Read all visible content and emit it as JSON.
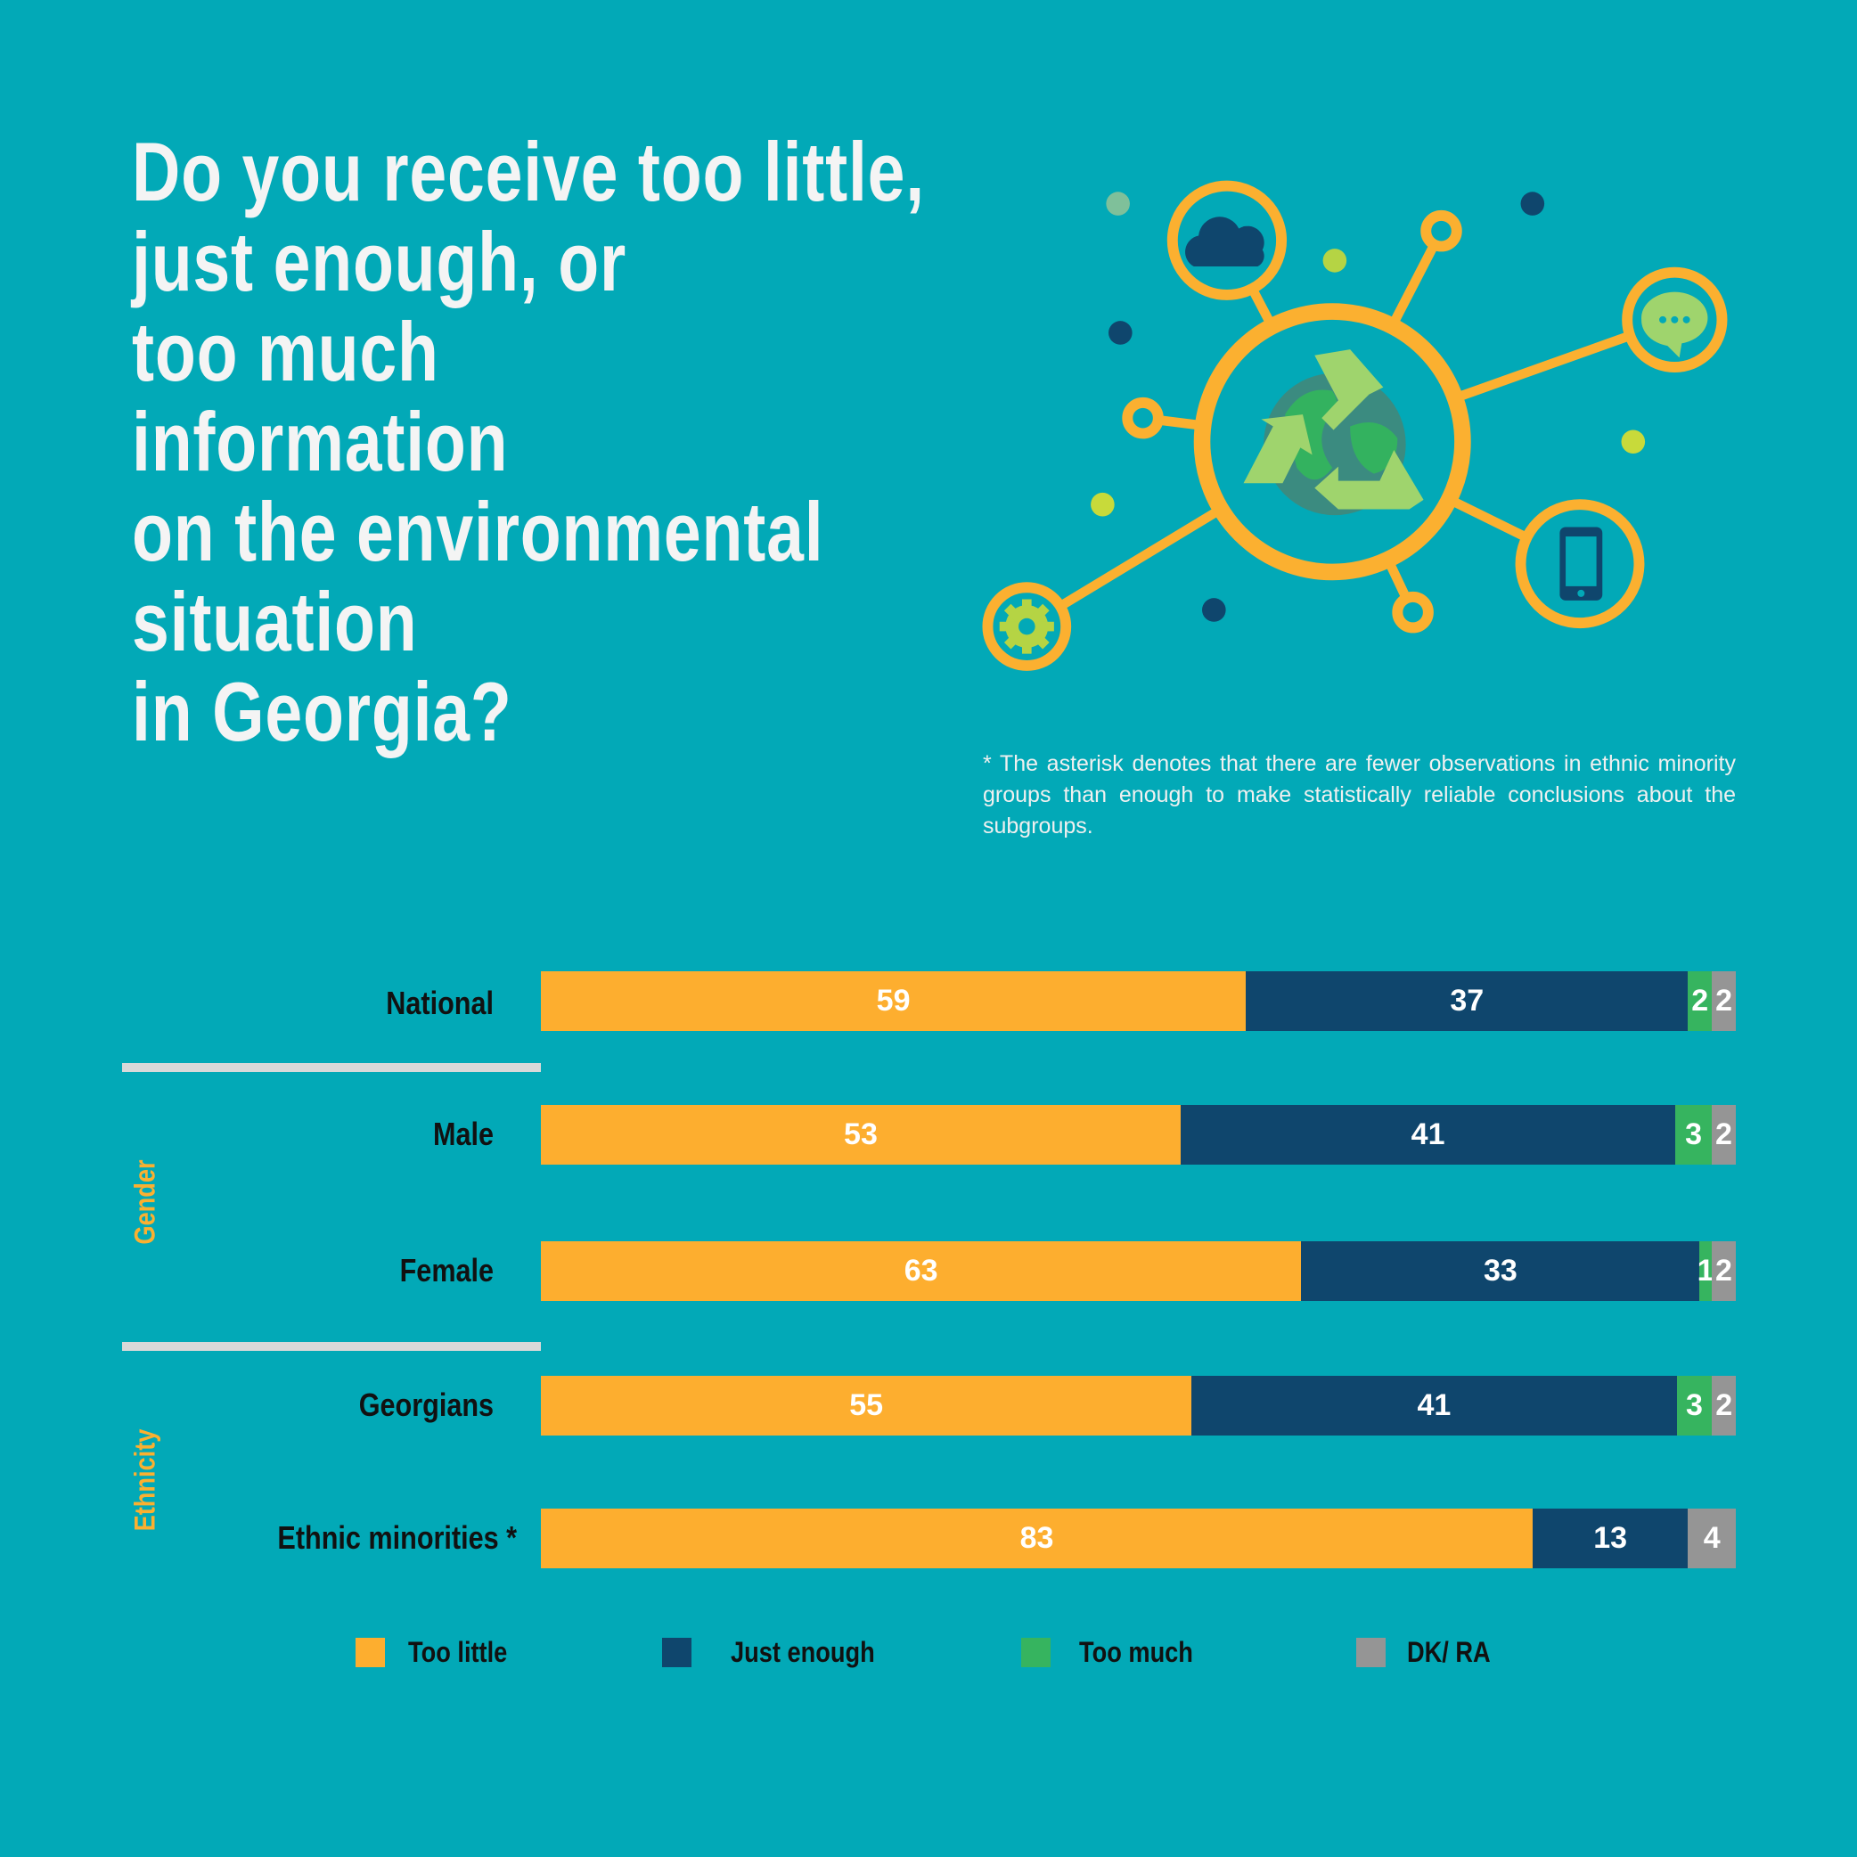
{
  "title_lines": [
    "Do you receive too little,",
    "just enough, or",
    "too much",
    "information",
    "on the environmental",
    "situation",
    "in Georgia?"
  ],
  "note": "* The asterisk denotes that there are fewer observations in ethnic minority groups than enough to make statistically reliable conclusions about the subgroups.",
  "illustration_icons": [
    "cloud-icon",
    "chat-bubble-icon",
    "smartphone-icon",
    "gear-icon",
    "globe-recycle-icon"
  ],
  "colors": {
    "background": "#02a9b7",
    "too_little": "#fdae2f",
    "just_enough": "#0f466d",
    "too_much": "#36b45f",
    "dk_ra": "#959595",
    "group_label": "#fbb030"
  },
  "groups": {
    "gender": "Gender",
    "ethnicity": "Ethnicity"
  },
  "chart_data": {
    "type": "bar",
    "orientation": "horizontal",
    "stacked": true,
    "categories": [
      "National",
      "Male",
      "Female",
      "Georgians",
      "Ethnic minorities *"
    ],
    "series": [
      {
        "name": "Too little",
        "values": [
          59,
          53,
          63,
          55,
          83
        ]
      },
      {
        "name": "Just enough",
        "values": [
          37,
          41,
          33,
          41,
          13
        ]
      },
      {
        "name": "Too much",
        "values": [
          2,
          3,
          1,
          3,
          null
        ]
      },
      {
        "name": "DK/ RA",
        "values": [
          2,
          2,
          2,
          2,
          4
        ]
      }
    ],
    "legend_position": "bottom",
    "grid": false
  }
}
